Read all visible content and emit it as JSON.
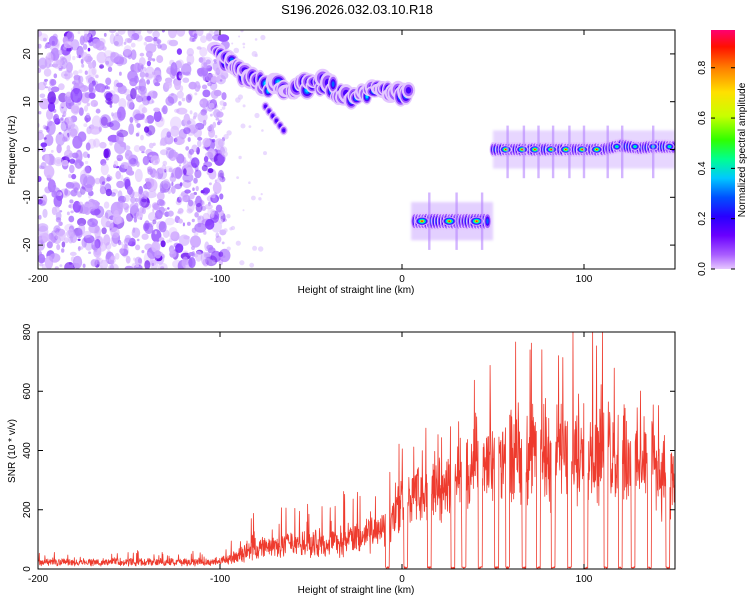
{
  "chart_data": [
    {
      "id": "spectrogram",
      "type": "heatmap",
      "title": "S196.2026.032.03.10.R18",
      "xlabel": "Height of straight line (km)",
      "ylabel": "Frequency (Hz)",
      "xlim": [
        -200,
        150
      ],
      "ylim": [
        -25,
        25
      ],
      "xticks": [
        -200,
        -100,
        0,
        100
      ],
      "yticks": [
        20,
        10,
        0,
        -10,
        -20
      ],
      "colorbar": {
        "label": "Normalized spectral amplitude",
        "range": [
          0.0,
          0.95
        ],
        "ticks": [
          0.0,
          0.2,
          0.4,
          0.6,
          0.8
        ],
        "colormap": [
          "#e6c8ff",
          "#8a2be2",
          "#3a00ff",
          "#0070ff",
          "#00e0ff",
          "#00ff60",
          "#b4ff00",
          "#ffff00",
          "#ff9000",
          "#ff0000",
          "#ff0070"
        ]
      },
      "features": [
        {
          "name": "noise-region",
          "x_range": [
            -200,
            -105
          ],
          "freq_range": [
            -25,
            25
          ]
        },
        {
          "name": "descending-track",
          "points": [
            [
              -103,
              20
            ],
            [
              -95,
              19
            ],
            [
              -85,
              15
            ],
            [
              -75,
              13.5
            ],
            [
              -65,
              13
            ],
            [
              -55,
              13.5
            ],
            [
              -45,
              14
            ],
            [
              -35,
              12
            ],
            [
              -25,
              11
            ],
            [
              -15,
              12
            ],
            [
              -5,
              11.5
            ],
            [
              5,
              12
            ]
          ]
        },
        {
          "name": "branch-low",
          "points": [
            [
              -75,
              9
            ],
            [
              -65,
              4
            ]
          ]
        },
        {
          "name": "segment-minus15",
          "x_range": [
            5,
            50
          ],
          "freq": -15
        },
        {
          "name": "segment-zero",
          "points": [
            [
              50,
              0
            ],
            [
              70,
              0
            ],
            [
              90,
              0
            ],
            [
              110,
              0
            ],
            [
              120,
              0.8
            ],
            [
              130,
              0.3
            ],
            [
              140,
              0.6
            ],
            [
              150,
              0.5
            ]
          ]
        }
      ]
    },
    {
      "id": "snr",
      "type": "line",
      "xlabel": "Height of straight line (km)",
      "ylabel": "SNR (10 * v/v)",
      "xlim": [
        -200,
        150
      ],
      "ylim": [
        0,
        800
      ],
      "xticks": [
        -200,
        -100,
        0,
        100
      ],
      "yticks": [
        0,
        200,
        400,
        600,
        800
      ],
      "line_color": "#ee3b2e",
      "envelope": [
        {
          "x": -200,
          "base": 15,
          "amp": 35
        },
        {
          "x": -100,
          "base": 15,
          "amp": 40
        },
        {
          "x": -80,
          "base": 40,
          "amp": 120
        },
        {
          "x": -60,
          "base": 50,
          "amp": 130
        },
        {
          "x": -40,
          "base": 60,
          "amp": 140
        },
        {
          "x": -20,
          "base": 80,
          "amp": 150
        },
        {
          "x": -8,
          "base": 110,
          "amp": 170
        },
        {
          "x": 0,
          "base": 200,
          "amp": 220
        },
        {
          "x": 20,
          "base": 240,
          "amp": 200
        },
        {
          "x": 40,
          "base": 300,
          "amp": 260
        },
        {
          "x": 60,
          "base": 350,
          "amp": 330
        },
        {
          "x": 80,
          "base": 340,
          "amp": 360
        },
        {
          "x": 100,
          "base": 320,
          "amp": 420
        },
        {
          "x": 120,
          "base": 330,
          "amp": 400
        },
        {
          "x": 140,
          "base": 290,
          "amp": 300
        },
        {
          "x": 150,
          "base": 260,
          "amp": 250
        }
      ],
      "gaps_x": [
        -8,
        2,
        15,
        28,
        34,
        43,
        52,
        58,
        67,
        75,
        83,
        92,
        101,
        112,
        120,
        127,
        136,
        146
      ]
    }
  ]
}
